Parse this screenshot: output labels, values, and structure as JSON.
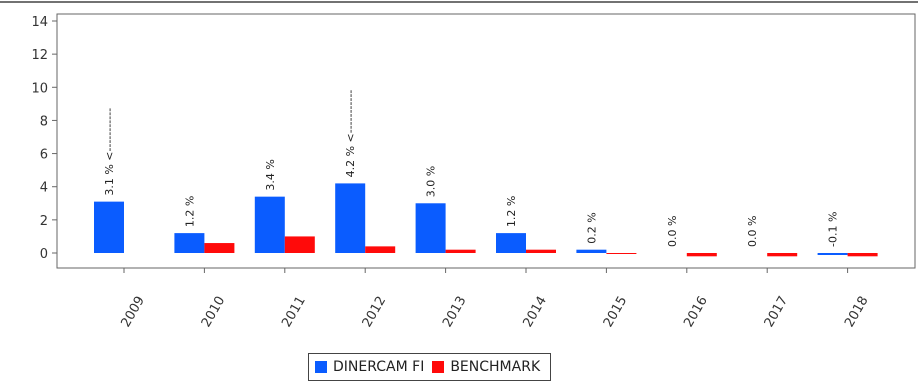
{
  "chart_data": {
    "type": "bar",
    "categories": [
      "2009",
      "2010",
      "2011",
      "2012",
      "2013",
      "2014",
      "2015",
      "2016",
      "2017",
      "2018"
    ],
    "series": [
      {
        "name": "DINERCAM FI",
        "color": "#0a5cff",
        "values": [
          3.1,
          1.2,
          3.4,
          4.2,
          3.0,
          1.2,
          0.2,
          0.0,
          0.0,
          -0.1
        ],
        "labels": [
          "3.1 % <-----------",
          "1.2 %",
          "3.4 %",
          "4.2 % <-----------",
          "3.0 %",
          "1.2 %",
          "0.2 %",
          "0.0 %",
          "0.0 %",
          "-0.1 %"
        ]
      },
      {
        "name": "BENCHMARK",
        "color": "#ff0a0a",
        "values": [
          0.0,
          0.6,
          1.0,
          0.4,
          0.2,
          0.2,
          0.0,
          -0.2,
          -0.2,
          -0.2
        ]
      }
    ],
    "yticks": [
      0,
      2,
      4,
      6,
      8,
      10,
      12,
      14
    ],
    "ylim": [
      -0.5,
      14.3
    ],
    "grid": false,
    "legend_position": "bottom"
  }
}
